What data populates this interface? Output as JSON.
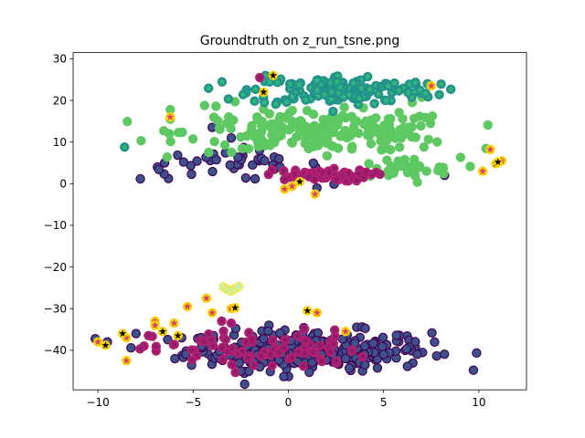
{
  "chart_data": {
    "type": "scatter",
    "title": "Groundtruth on z_run_tsne.png",
    "xlabel": "",
    "ylabel": "",
    "xlim": [
      -11.3,
      12.5
    ],
    "ylim": [
      -49.5,
      31.5
    ],
    "xticks": [
      -10,
      -5,
      0,
      5,
      10
    ],
    "yticks": [
      -40,
      -30,
      -20,
      -10,
      0,
      10,
      20,
      30
    ],
    "xtick_labels": [
      "−10",
      "−5",
      "0",
      "5",
      "10"
    ],
    "ytick_labels": [
      "−40",
      "−30",
      "−20",
      "−10",
      "0",
      "10",
      "20",
      "30"
    ],
    "grid": false,
    "legend": "none",
    "series": [
      {
        "marker": "circle",
        "color": "#3b528b",
        "edgecolor": "#440154",
        "clusters": [
          {
            "cx": 1.0,
            "cy": -40.0,
            "sx": 3.2,
            "sy": 2.4,
            "n": 300
          },
          {
            "cx": -3.0,
            "cy": 4.5,
            "sx": 2.4,
            "sy": 1.8,
            "n": 40
          }
        ],
        "points": [
          [
            -6.5,
            5.0
          ],
          [
            -5.5,
            5.2
          ],
          [
            -4.0,
            13.5
          ],
          [
            -3.0,
            11.0
          ],
          [
            1.5,
            -1.0
          ],
          [
            8.2,
            2.0
          ],
          [
            -8.0,
            -36.0
          ],
          [
            -9.5,
            -38.0
          ],
          [
            4.0,
            -41.0
          ],
          [
            5.0,
            -41.0
          ],
          [
            3.0,
            -42.0
          ],
          [
            -1.5,
            -44.0
          ],
          [
            -2.5,
            -45.0
          ]
        ]
      },
      {
        "marker": "circle",
        "color": "#5ec962",
        "edgecolor": "#5ec962",
        "clusters": [
          {
            "cx": 1.8,
            "cy": 12.5,
            "sx": 3.6,
            "sy": 2.4,
            "n": 220
          },
          {
            "cx": 5.8,
            "cy": 3.5,
            "sx": 1.6,
            "sy": 1.4,
            "n": 30
          }
        ],
        "points": [
          [
            -6.2,
            17.8
          ],
          [
            -6.2,
            15.5
          ],
          [
            -4.4,
            18.8
          ],
          [
            -3.8,
            18.6
          ],
          [
            -2.8,
            19.7
          ],
          [
            6.5,
            19.5
          ],
          [
            7.0,
            20.8
          ]
        ]
      },
      {
        "marker": "star",
        "color": "#35b779",
        "edgecolor": "#21918c",
        "clusters": [
          {
            "cx": 2.8,
            "cy": 22.5,
            "sx": 2.4,
            "sy": 1.8,
            "n": 150
          }
        ],
        "points": [
          [
            -8.6,
            8.8
          ],
          [
            -1.2,
            26.0
          ],
          [
            -0.8,
            25.8
          ],
          [
            7.3,
            24.0
          ]
        ]
      },
      {
        "marker": "star",
        "color": "#8b1a6a",
        "edgecolor": "#b02070",
        "clusters": [
          {
            "cx": 1.5,
            "cy": 2.0,
            "sx": 1.4,
            "sy": 0.7,
            "n": 60
          },
          {
            "cx": -1.5,
            "cy": -40.0,
            "sx": 2.8,
            "sy": 2.4,
            "n": 80
          }
        ],
        "points": [
          [
            -1.5,
            25.5
          ],
          [
            -3.5,
            -33.0
          ],
          [
            -3.0,
            -33.5
          ]
        ]
      },
      {
        "marker": "star",
        "color": "#d3436e",
        "edgecolor": "#fcd100",
        "clusters": [],
        "points": [
          [
            -6.2,
            16.0
          ],
          [
            7.5,
            23.5
          ],
          [
            10.2,
            3.0
          ],
          [
            10.6,
            8.2
          ],
          [
            11.2,
            5.5
          ],
          [
            -0.2,
            -1.3
          ],
          [
            -5.3,
            -29.5
          ],
          [
            -4.3,
            -27.5
          ],
          [
            -7.0,
            -33.0
          ],
          [
            -6.0,
            -33.5
          ],
          [
            -4.0,
            -31.0
          ],
          [
            -3.0,
            -30.0
          ],
          [
            -10.0,
            -38.0
          ],
          [
            -8.5,
            -42.5
          ],
          [
            -8.5,
            -37.0
          ],
          [
            -7.0,
            -34.0
          ],
          [
            1.5,
            -31.0
          ],
          [
            3.0,
            -35.5
          ],
          [
            1.4,
            -2.5
          ],
          [
            0.2,
            -0.6
          ]
        ]
      },
      {
        "marker": "star",
        "color": "#0b0b0b",
        "edgecolor": "#fcd100",
        "clusters": [],
        "points": [
          [
            10.9,
            4.8
          ],
          [
            11.0,
            5.2
          ],
          [
            -9.6,
            -38.8
          ],
          [
            -8.7,
            -36.0
          ],
          [
            -5.8,
            -36.5
          ],
          [
            -6.6,
            -35.5
          ],
          [
            1.0,
            -30.5
          ],
          [
            -2.8,
            -29.8
          ],
          [
            0.6,
            0.5
          ],
          [
            -0.8,
            26.0
          ],
          [
            -1.3,
            22.0
          ]
        ]
      },
      {
        "marker": "circle",
        "color": "#c8f0b0",
        "edgecolor": "#fde725",
        "clusters": [],
        "points": [
          [
            -3.4,
            -24.8
          ],
          [
            -3.2,
            -25.4
          ],
          [
            -3.0,
            -25.8
          ],
          [
            -2.8,
            -25.2
          ],
          [
            -2.6,
            -24.7
          ]
        ]
      }
    ]
  }
}
